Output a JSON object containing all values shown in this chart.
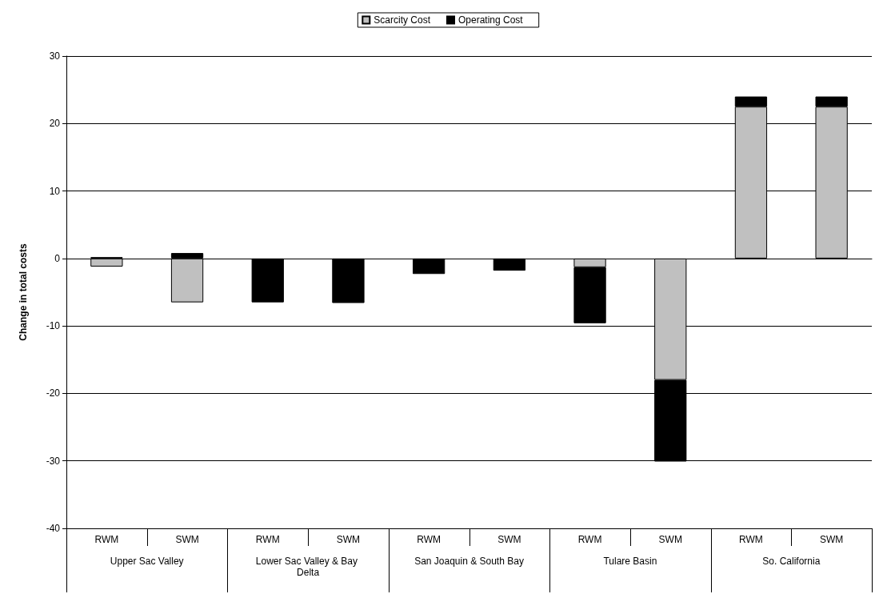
{
  "chart_data": {
    "type": "bar",
    "stacked": true,
    "categories": [
      "RWM",
      "SWM",
      "RWM",
      "SWM",
      "RWM",
      "SWM",
      "RWM",
      "SWM",
      "RWM",
      "SWM"
    ],
    "annotations": [
      "Upper Sac Valley",
      "Lower Sac Valley & Bay Delta",
      "San Joaquin & South Bay",
      "Tulare Basin",
      "So. California"
    ],
    "ylabel": "Change in total costs",
    "series": [
      {
        "name": "Scarcity Cost",
        "color": "#c0c0c0",
        "values": [
          -1.2,
          -6.5,
          0,
          0,
          0,
          0,
          -1.3,
          -18.0,
          22.5,
          22.5
        ]
      },
      {
        "name": "Operating Cost",
        "color": "#000000",
        "values": [
          0.2,
          0.8,
          -6.5,
          -6.6,
          -2.3,
          -1.8,
          -8.3,
          -12.1,
          1.5,
          1.5
        ]
      }
    ],
    "ylim": [
      -40,
      30
    ],
    "yticks": [
      -40,
      -30,
      -20,
      -10,
      0,
      10,
      20,
      30
    ],
    "grid": "y",
    "legend": "top"
  }
}
